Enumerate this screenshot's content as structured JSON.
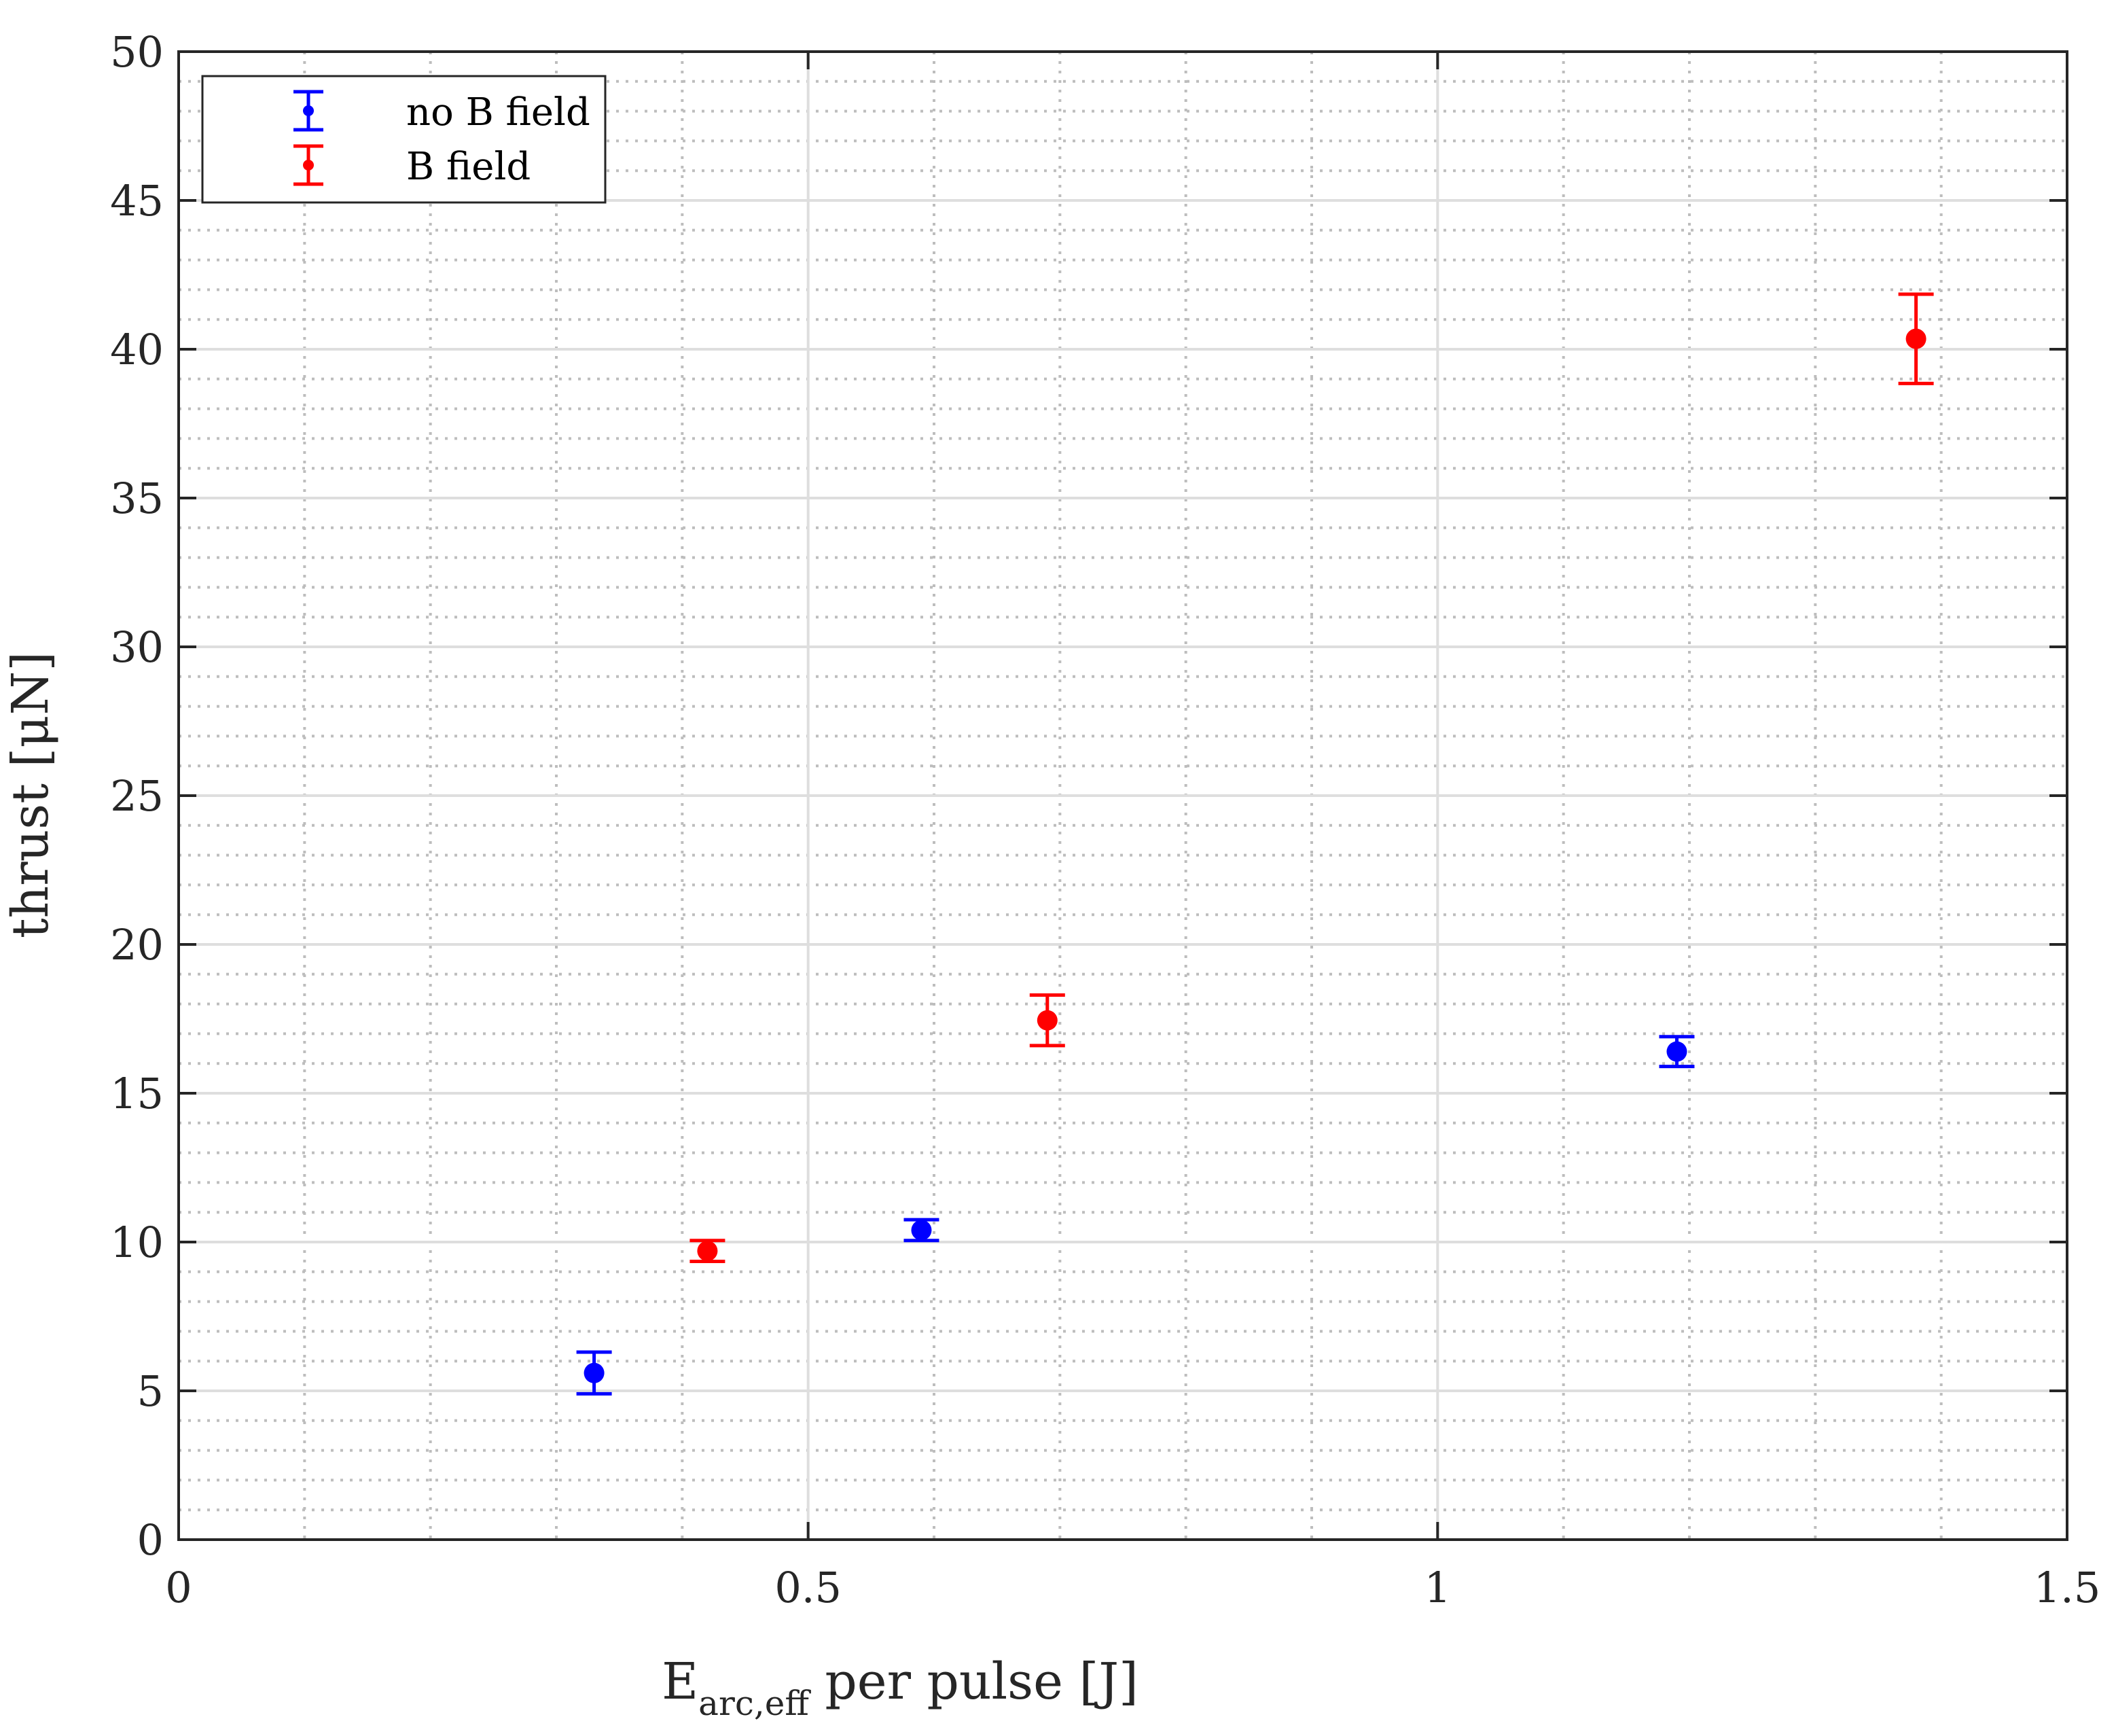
{
  "chart_data": {
    "type": "scatter",
    "title": "",
    "xlabel": {
      "main": "E",
      "subscript": "arc,eff",
      "rest": " per pulse [J]"
    },
    "ylabel": "thrust [μN]",
    "xlim": [
      0,
      1.5
    ],
    "ylim": [
      0,
      50
    ],
    "xticks": [
      0,
      0.5,
      1,
      1.5
    ],
    "xtick_labels": [
      "0",
      "0.5",
      "1",
      "1.5"
    ],
    "yticks": [
      0,
      5,
      10,
      15,
      20,
      25,
      30,
      35,
      40,
      45,
      50
    ],
    "ytick_labels": [
      "0",
      "5",
      "10",
      "15",
      "20",
      "25",
      "30",
      "35",
      "40",
      "45",
      "50"
    ],
    "x_minor_step": 0.1,
    "y_minor_step": 1,
    "grid": true,
    "minor_grid": true,
    "legend_position": "top-left",
    "series": [
      {
        "name": "no B field",
        "color": "#0000ff",
        "points": [
          {
            "x": 0.33,
            "y": 5.6,
            "err": 0.7
          },
          {
            "x": 0.59,
            "y": 10.4,
            "err": 0.35
          },
          {
            "x": 1.19,
            "y": 16.4,
            "err": 0.5
          }
        ]
      },
      {
        "name": "B field",
        "color": "#ff0000",
        "points": [
          {
            "x": 0.42,
            "y": 9.7,
            "err": 0.35
          },
          {
            "x": 0.69,
            "y": 17.45,
            "err": 0.85
          },
          {
            "x": 1.38,
            "y": 40.35,
            "err": 1.5
          }
        ]
      }
    ]
  }
}
